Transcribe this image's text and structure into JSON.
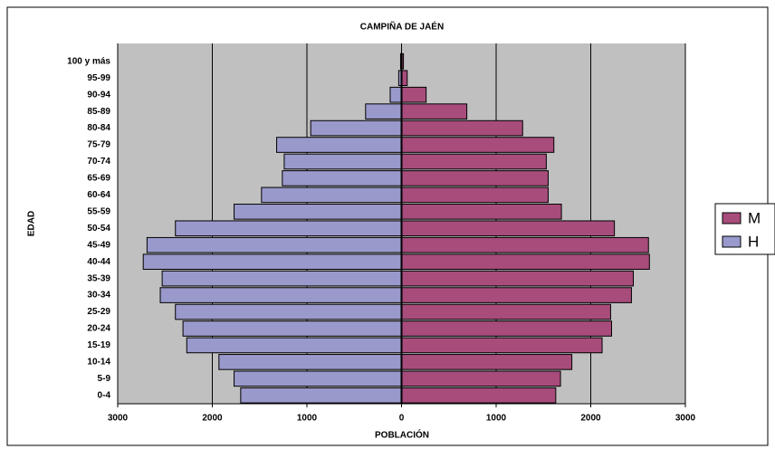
{
  "chart_data": {
    "type": "pyramid",
    "title": "CAMPIÑA DE JAÉN",
    "x_label": "POBLACIÓN",
    "y_label": "EDAD",
    "categories": [
      "0-4",
      "5-9",
      "10-14",
      "15-19",
      "20-24",
      "25-29",
      "30-34",
      "35-39",
      "40-44",
      "45-49",
      "50-54",
      "55-59",
      "60-64",
      "65-69",
      "70-74",
      "75-79",
      "80-84",
      "85-89",
      "90-94",
      "95-99",
      "100 y más"
    ],
    "series": [
      {
        "name": "M",
        "color": "#a84c7c",
        "values": [
          1630,
          1680,
          1800,
          2120,
          2220,
          2210,
          2430,
          2450,
          2620,
          2610,
          2250,
          1690,
          1550,
          1550,
          1530,
          1610,
          1280,
          690,
          260,
          60,
          20
        ]
      },
      {
        "name": "H",
        "color": "#9999cc",
        "values": [
          -1700,
          -1770,
          -1930,
          -2270,
          -2310,
          -2390,
          -2550,
          -2530,
          -2730,
          -2690,
          -2390,
          -1770,
          -1480,
          -1260,
          -1240,
          -1320,
          -960,
          -380,
          -120,
          -30,
          -10
        ]
      }
    ],
    "xlim": [
      -3000,
      3000
    ],
    "xticks": [
      {
        "value": -3000,
        "label": "3000"
      },
      {
        "value": -2000,
        "label": "2000"
      },
      {
        "value": -1000,
        "label": "1000"
      },
      0,
      1000,
      2000,
      3000
    ],
    "grid": true,
    "legend": "right"
  }
}
